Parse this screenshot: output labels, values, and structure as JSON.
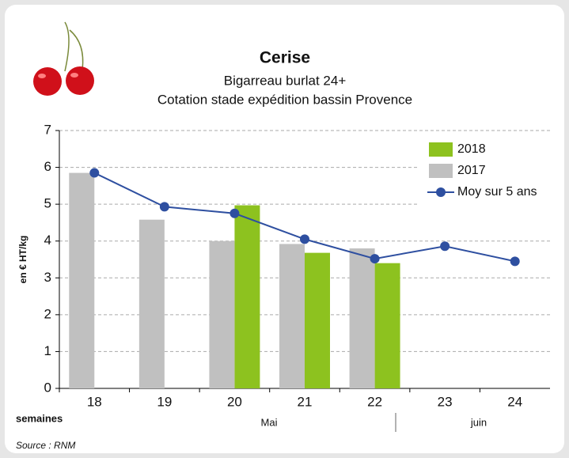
{
  "chart_data": {
    "type": "bar",
    "title": "Cerise",
    "subtitle": [
      "Bigarreau burlat 24+",
      "Cotation stade expédition bassin Provence"
    ],
    "y_label": "en € HT/kg",
    "x_label": "semaines",
    "months": [
      "Mai",
      "juin"
    ],
    "source": "Source : RNM",
    "categories": [
      "18",
      "19",
      "20",
      "21",
      "22",
      "23",
      "24"
    ],
    "series": [
      {
        "name": "2018",
        "type": "bar",
        "color": "#8dc21f",
        "values": [
          null,
          null,
          4.97,
          3.68,
          3.4,
          null,
          null
        ]
      },
      {
        "name": "2017",
        "type": "bar",
        "color": "#c0c0c0",
        "values": [
          5.85,
          4.58,
          4.0,
          3.92,
          3.8,
          null,
          null
        ]
      },
      {
        "name": "Moy sur 5 ans",
        "type": "line",
        "color": "#2e4fa0",
        "values": [
          5.85,
          4.93,
          4.75,
          4.05,
          3.52,
          3.86,
          3.45
        ]
      }
    ],
    "ylim": [
      0,
      7
    ],
    "yticks": [
      0,
      1,
      2,
      3,
      4,
      5,
      6,
      7
    ],
    "grid": true,
    "legend": "upper right"
  }
}
